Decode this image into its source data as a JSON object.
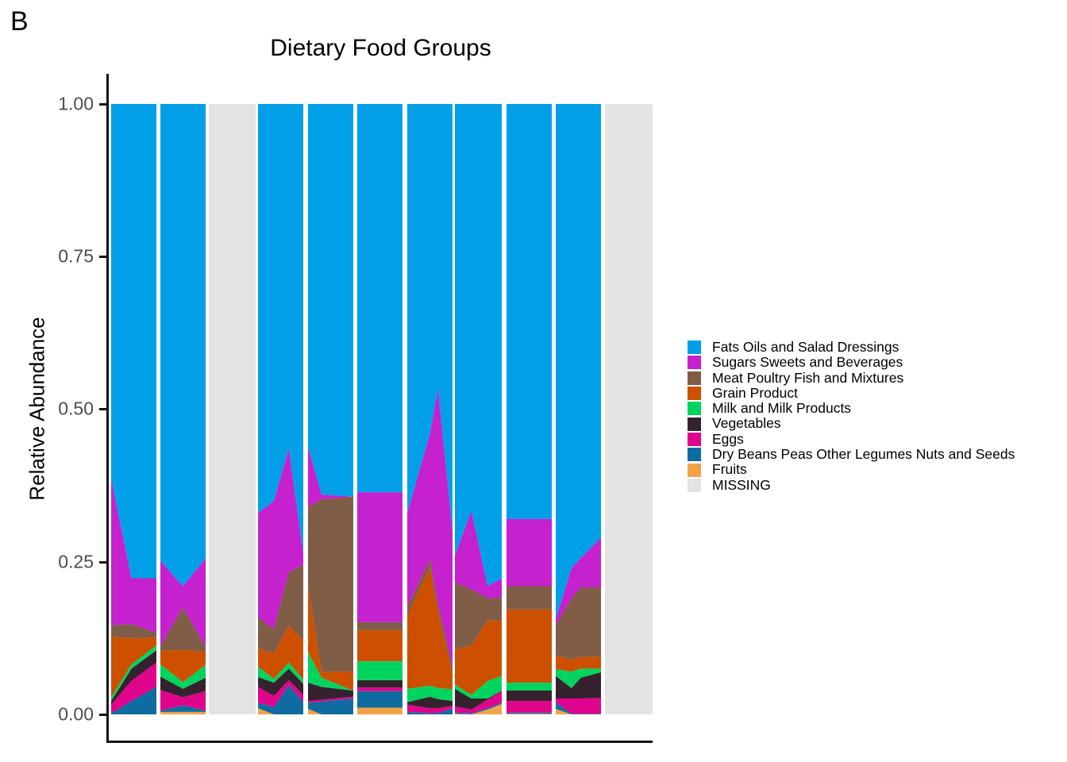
{
  "panel_label": "B",
  "title": "Dietary Food Groups",
  "y_axis": {
    "label": "Relative Abundance",
    "ticks": [
      "1.00",
      "0.75",
      "0.50",
      "0.25",
      "0.00"
    ],
    "tick_values": [
      1.0,
      0.75,
      0.5,
      0.25,
      0.0
    ]
  },
  "x_axis": {
    "label": "",
    "ticks": []
  },
  "legend": {
    "items": [
      {
        "label": "Fats Oils and Salad Dressings",
        "color": "#009FE8"
      },
      {
        "label": "Sugars Sweets and Beverages",
        "color": "#C521CE"
      },
      {
        "label": "Meat Poultry Fish and Mixtures",
        "color": "#7E5C46"
      },
      {
        "label": "Grain Product",
        "color": "#CC5000"
      },
      {
        "label": "Milk and Milk Products",
        "color": "#00D45F"
      },
      {
        "label": "Vegetables",
        "color": "#36222E"
      },
      {
        "label": "Eggs",
        "color": "#E0048C"
      },
      {
        "label": "Dry Beans Peas Other Legumes Nuts and Seeds",
        "color": "#0E6CA0"
      },
      {
        "label": "Fruits",
        "color": "#F0A347"
      },
      {
        "label": "MISSING",
        "color": "#E3E3E3"
      }
    ]
  },
  "chart_data": {
    "type": "area",
    "subtype": "stacked-relative-abundance",
    "title": "Dietary Food Groups",
    "ylabel": "Relative Abundance",
    "ylim": [
      0,
      1
    ],
    "grid": false,
    "legend_position": "right",
    "stack_order_bottom_to_top": [
      "Fruits",
      "Dry Beans Peas Other Legumes Nuts and Seeds",
      "Eggs",
      "Vegetables",
      "Milk and Milk Products",
      "Grain Product",
      "Meat Poultry Fish and Mixtures",
      "Sugars Sweets and Beverages",
      "Fats Oils and Salad Dressings"
    ],
    "colors_bottom_to_top": [
      "#F0A347",
      "#0E6CA0",
      "#E0048C",
      "#36222E",
      "#00D45F",
      "#CC5000",
      "#7E5C46",
      "#C521CE",
      "#009FE8"
    ],
    "missing_color": "#E3E3E3",
    "note": "samples[].v lists fractions bottom-to-top for the first 8 categories; Fats Oils and Salad Dressings fills the remainder up to 1.0",
    "segments": [
      {
        "id": 1,
        "missing": false,
        "x0": 0.0044,
        "x1": 0.0876,
        "samples": [
          {
            "x": 0.0,
            "v": [
              0.0,
              0.002,
              0.014,
              0.006,
              0.006,
              0.099,
              0.019,
              0.24
            ]
          },
          {
            "x": 0.45,
            "v": [
              0.0,
              0.022,
              0.033,
              0.02,
              0.007,
              0.043,
              0.023,
              0.075
            ]
          },
          {
            "x": 1.0,
            "v": [
              0.0,
              0.045,
              0.04,
              0.02,
              0.008,
              0.013,
              0.008,
              0.089
            ]
          }
        ]
      },
      {
        "id": 2,
        "missing": false,
        "x0": 0.0949,
        "x1": 0.1781,
        "samples": [
          {
            "x": 0.0,
            "v": [
              0.004,
              0.002,
              0.034,
              0.022,
              0.02,
              0.022,
              0.008,
              0.14
            ]
          },
          {
            "x": 0.5,
            "v": [
              0.004,
              0.011,
              0.013,
              0.014,
              0.011,
              0.053,
              0.069,
              0.035
            ]
          },
          {
            "x": 1.0,
            "v": [
              0.004,
              0.002,
              0.032,
              0.022,
              0.021,
              0.022,
              0.007,
              0.146
            ]
          }
        ]
      },
      {
        "id": 3,
        "missing": true,
        "x0": 0.1839,
        "x1": 0.2701,
        "samples": []
      },
      {
        "id": 4,
        "missing": false,
        "x0": 0.2745,
        "x1": 0.3577,
        "samples": [
          {
            "x": 0.0,
            "v": [
              0.01,
              0.009,
              0.026,
              0.016,
              0.017,
              0.03,
              0.051,
              0.171
            ]
          },
          {
            "x": 0.35,
            "v": [
              0.0,
              0.012,
              0.018,
              0.022,
              0.006,
              0.042,
              0.04,
              0.21
            ]
          },
          {
            "x": 0.68,
            "v": [
              0.0,
              0.048,
              0.008,
              0.019,
              0.01,
              0.061,
              0.087,
              0.203
            ]
          },
          {
            "x": 1.0,
            "v": [
              0.0,
              0.02,
              0.012,
              0.018,
              0.007,
              0.064,
              0.124,
              0.019
            ]
          }
        ]
      },
      {
        "id": 5,
        "missing": false,
        "x0": 0.3664,
        "x1": 0.4496,
        "samples": [
          {
            "x": 0.0,
            "v": [
              0.009,
              0.01,
              0.003,
              0.03,
              0.05,
              0.109,
              0.129,
              0.098
            ]
          },
          {
            "x": 0.3,
            "v": [
              0.0,
              0.021,
              0.003,
              0.021,
              0.015,
              0.01,
              0.282,
              0.008
            ]
          },
          {
            "x": 1.0,
            "v": [
              0.0,
              0.026,
              0.003,
              0.01,
              0.0,
              0.031,
              0.287,
              0.0
            ]
          }
        ]
      },
      {
        "id": 6,
        "missing": false,
        "x0": 0.4569,
        "x1": 0.5401,
        "samples": [
          {
            "x": 0.0,
            "v": [
              0.011,
              0.027,
              0.006,
              0.012,
              0.031,
              0.051,
              0.013,
              0.213
            ]
          },
          {
            "x": 1.0,
            "v": [
              0.011,
              0.027,
              0.006,
              0.012,
              0.031,
              0.051,
              0.013,
              0.213
            ]
          }
        ]
      },
      {
        "id": 7,
        "missing": false,
        "x0": 0.5489,
        "x1": 0.6321,
        "samples": [
          {
            "x": 0.0,
            "v": [
              0.0,
              0.004,
              0.012,
              0.004,
              0.022,
              0.121,
              0.013,
              0.154
            ]
          },
          {
            "x": 0.5,
            "v": [
              0.0,
              0.002,
              0.008,
              0.019,
              0.018,
              0.194,
              0.013,
              0.206
            ]
          },
          {
            "x": 0.68,
            "v": [
              0.0,
              0.002,
              0.008,
              0.015,
              0.018,
              0.127,
              0.01,
              0.354
            ]
          },
          {
            "x": 1.0,
            "v": [
              0.0,
              0.01,
              0.004,
              0.008,
              0.019,
              0.024,
              0.013,
              0.222
            ]
          }
        ]
      },
      {
        "id": 8,
        "missing": false,
        "x0": 0.6365,
        "x1": 0.7226,
        "samples": [
          {
            "x": 0.0,
            "v": [
              0.001,
              0.002,
              0.01,
              0.029,
              0.007,
              0.058,
              0.109,
              0.044
            ]
          },
          {
            "x": 0.35,
            "v": [
              0.0,
              0.002,
              0.006,
              0.018,
              0.006,
              0.081,
              0.092,
              0.129
            ]
          },
          {
            "x": 0.7,
            "v": [
              0.008,
              0.002,
              0.014,
              0.002,
              0.029,
              0.099,
              0.036,
              0.02
            ]
          },
          {
            "x": 1.0,
            "v": [
              0.017,
              0.002,
              0.019,
              0.001,
              0.024,
              0.091,
              0.037,
              0.032
            ]
          }
        ]
      },
      {
        "id": 9,
        "missing": false,
        "x0": 0.7314,
        "x1": 0.8146,
        "samples": [
          {
            "x": 0.0,
            "v": [
              0.001,
              0.002,
              0.019,
              0.017,
              0.013,
              0.12,
              0.038,
              0.11
            ]
          },
          {
            "x": 1.0,
            "v": [
              0.001,
              0.002,
              0.019,
              0.017,
              0.013,
              0.12,
              0.038,
              0.11
            ]
          }
        ]
      },
      {
        "id": 10,
        "missing": false,
        "x0": 0.8219,
        "x1": 0.9051,
        "samples": [
          {
            "x": 0.0,
            "v": [
              0.009,
              0.011,
              0.006,
              0.037,
              0.011,
              0.023,
              0.049,
              0.01
            ]
          },
          {
            "x": 0.35,
            "v": [
              0.0,
              0.001,
              0.025,
              0.017,
              0.027,
              0.02,
              0.1,
              0.05
            ]
          },
          {
            "x": 0.55,
            "v": [
              0.0,
              0.001,
              0.025,
              0.034,
              0.015,
              0.019,
              0.114,
              0.048
            ]
          },
          {
            "x": 1.0,
            "v": [
              0.0,
              0.001,
              0.026,
              0.042,
              0.006,
              0.02,
              0.113,
              0.082
            ]
          }
        ]
      },
      {
        "id": 11,
        "missing": true,
        "x0": 0.9124,
        "x1": 1.0,
        "samples": []
      }
    ]
  }
}
